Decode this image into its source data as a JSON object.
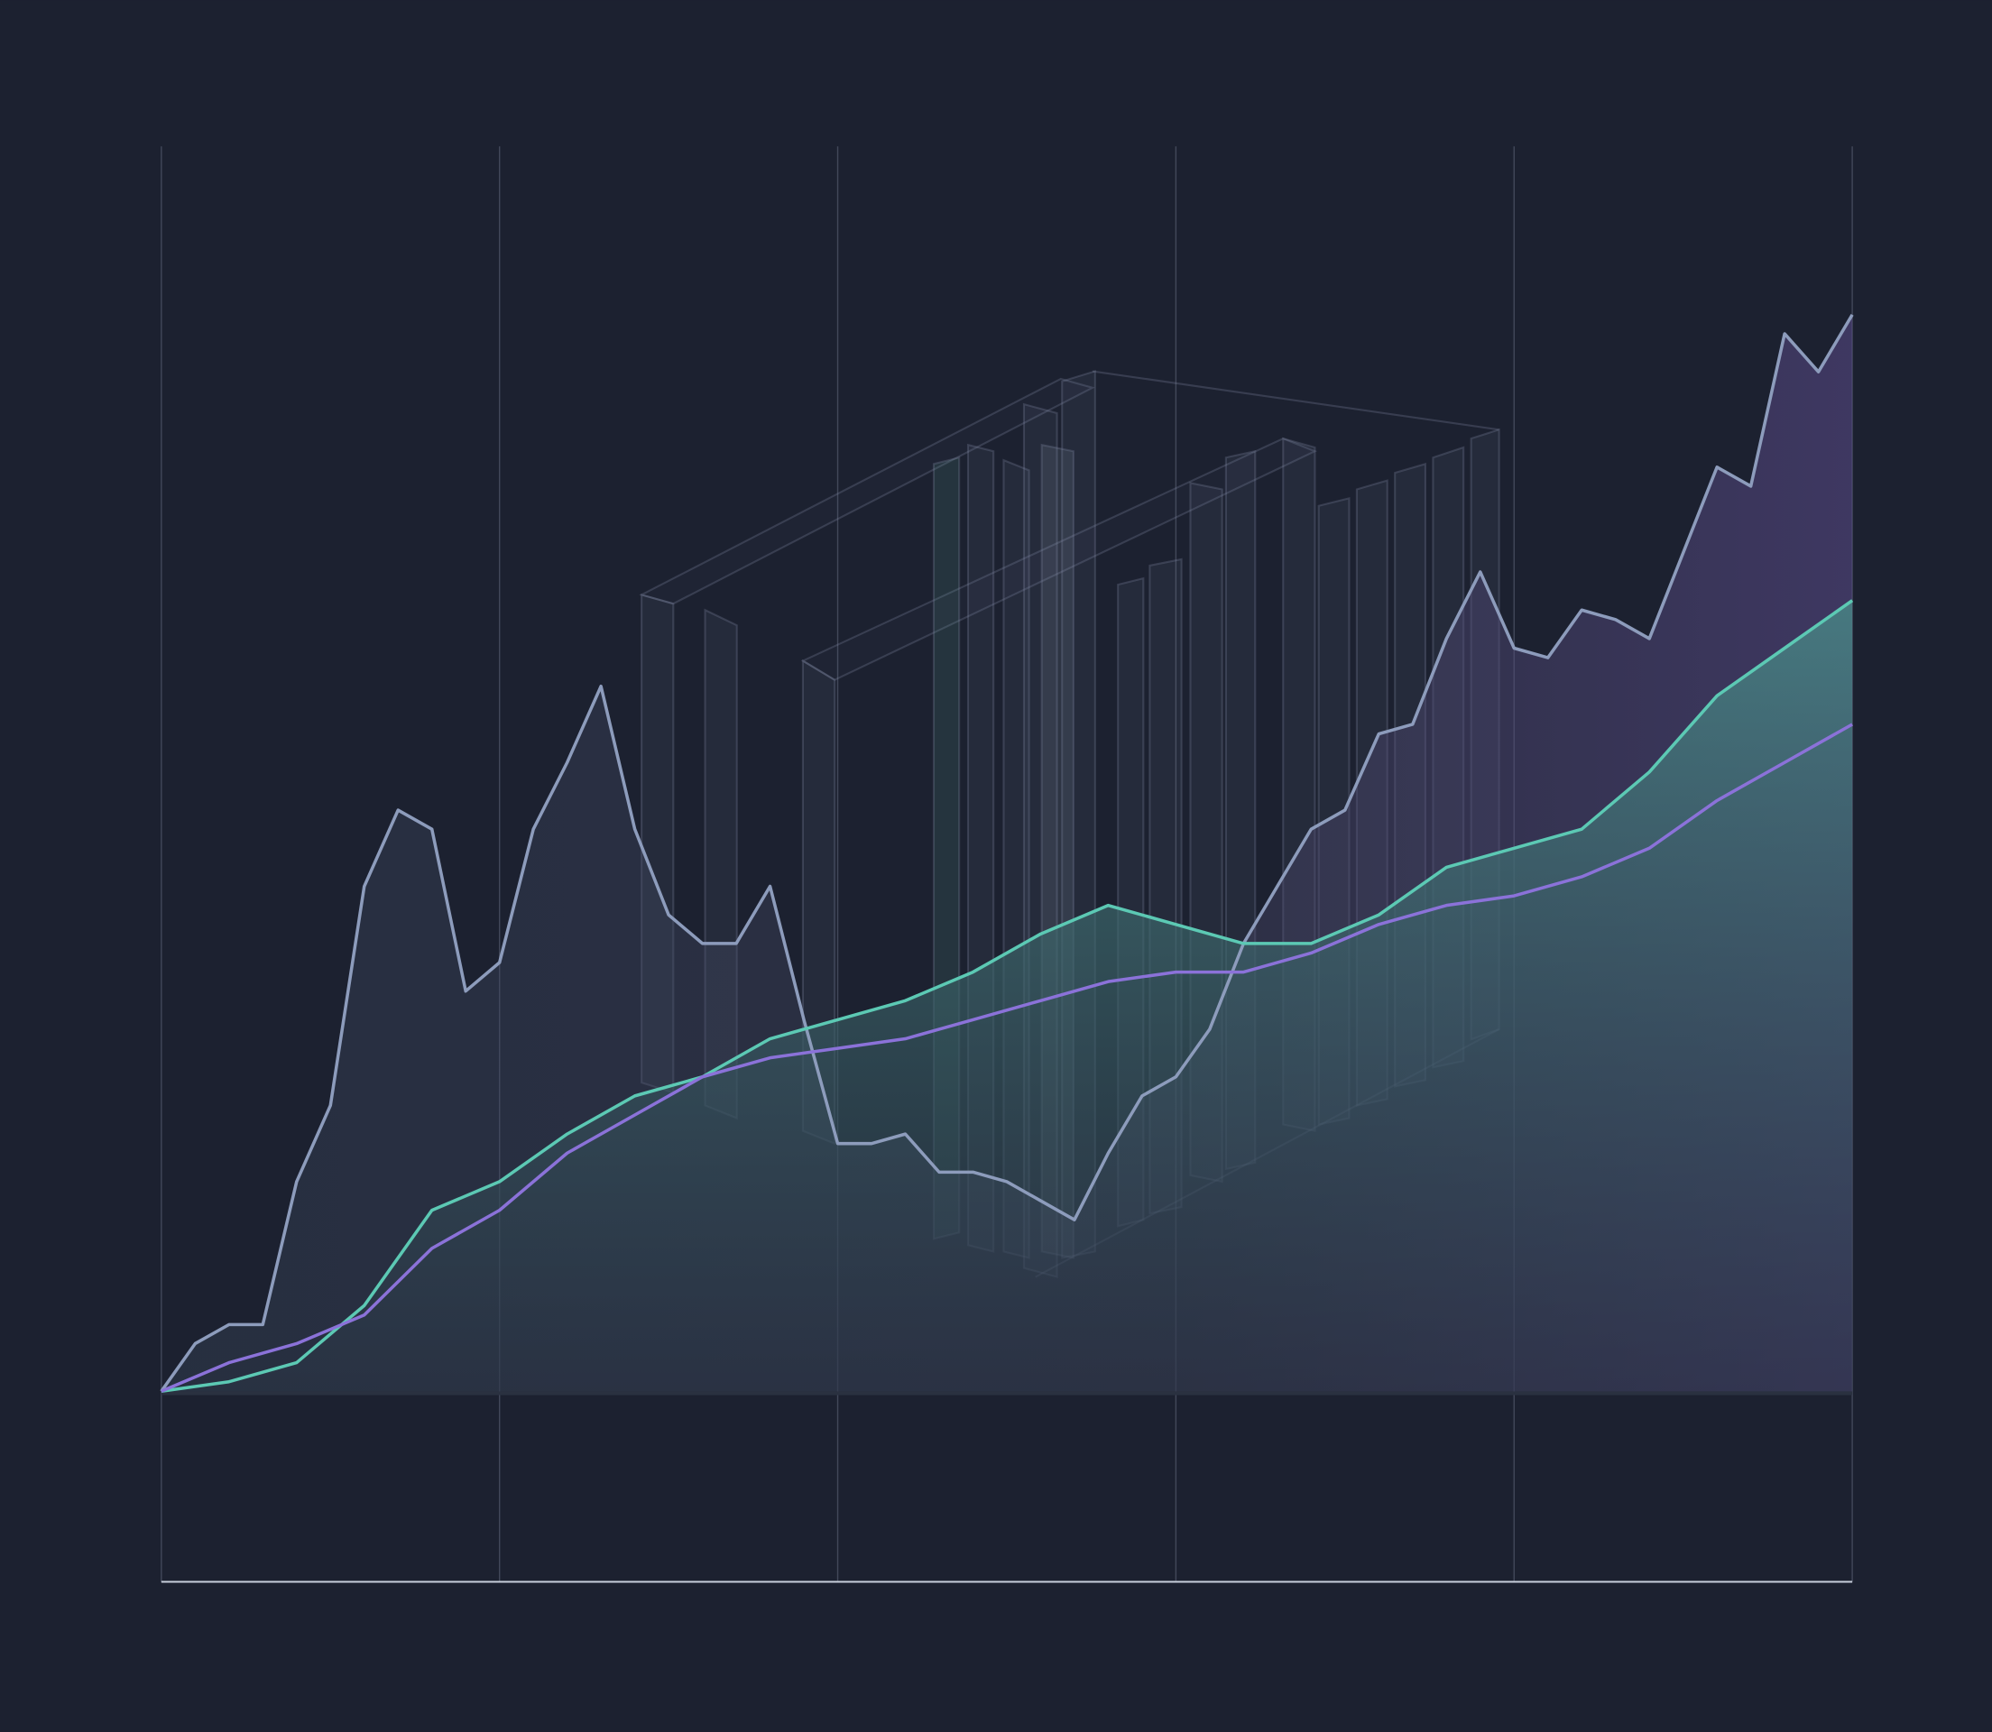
{
  "chart_data": {
    "type": "line",
    "xlim": [
      0,
      100
    ],
    "xticks": [
      0,
      20,
      40,
      60,
      80,
      100
    ],
    "ylim": [
      -20,
      130
    ],
    "series": [
      {
        "color": "#8d9cbc",
        "fill": "#7a6bb8",
        "x": [
          0,
          2,
          4,
          6,
          8,
          10,
          12,
          14,
          16,
          18,
          20,
          22,
          24,
          26,
          28,
          30,
          32,
          34,
          36,
          38,
          40,
          42,
          44,
          46,
          48,
          50,
          52,
          54,
          56,
          58,
          60,
          62,
          64,
          66,
          68,
          70,
          72,
          74,
          76,
          78,
          80,
          82,
          84,
          86,
          88,
          90,
          92,
          94,
          96,
          98,
          100
        ],
        "values": [
          0,
          5,
          7,
          7,
          22,
          30,
          53,
          61,
          59,
          42,
          45,
          59,
          66,
          74,
          59,
          50,
          47,
          47,
          53,
          39,
          26,
          26,
          27,
          23,
          23,
          22,
          20,
          18,
          25,
          31,
          33,
          38,
          47,
          53,
          59,
          61,
          69,
          70,
          79,
          86,
          78,
          77,
          82,
          81,
          79,
          88,
          97,
          95,
          111,
          107,
          113
        ]
      },
      {
        "color": "#5cc9b4",
        "fill": "#3f8a86",
        "x": [
          0,
          4,
          8,
          12,
          16,
          20,
          24,
          28,
          32,
          36,
          40,
          44,
          48,
          52,
          56,
          60,
          64,
          68,
          72,
          76,
          80,
          84,
          88,
          92,
          96,
          100
        ],
        "values": [
          0,
          1,
          3,
          9,
          19,
          22,
          27,
          31,
          33,
          37,
          39,
          41,
          44,
          48,
          51,
          49,
          47,
          47,
          50,
          55,
          57,
          59,
          65,
          73,
          78,
          83
        ]
      },
      {
        "color": "#8b72d9",
        "x": [
          0,
          4,
          8,
          12,
          16,
          20,
          24,
          28,
          32,
          36,
          40,
          44,
          48,
          52,
          56,
          60,
          64,
          68,
          72,
          76,
          80,
          84,
          88,
          92,
          96,
          100
        ],
        "values": [
          0,
          3,
          5,
          8,
          15,
          19,
          25,
          29,
          33,
          35,
          36,
          37,
          39,
          41,
          43,
          44,
          44,
          46,
          49,
          51,
          52,
          54,
          57,
          62,
          66,
          70
        ]
      }
    ]
  }
}
